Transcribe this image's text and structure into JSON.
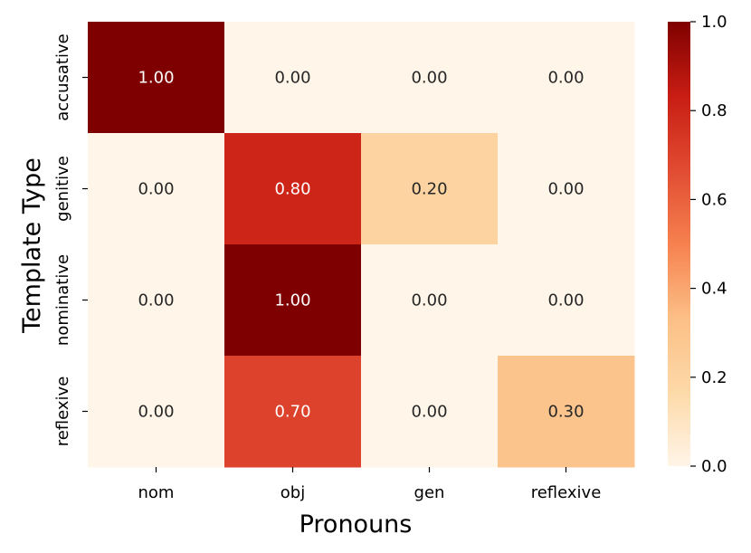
{
  "chart_data": {
    "type": "heatmap",
    "title": "",
    "xlabel": "Pronouns",
    "ylabel": "Template Type",
    "x_categories": [
      "nom",
      "obj",
      "gen",
      "reflexive"
    ],
    "y_categories": [
      "accusative",
      "genitive",
      "nominative",
      "reflexive"
    ],
    "values": [
      [
        1.0,
        0.0,
        0.0,
        0.0
      ],
      [
        0.0,
        0.8,
        0.2,
        0.0
      ],
      [
        0.0,
        1.0,
        0.0,
        0.0
      ],
      [
        0.0,
        0.7,
        0.0,
        0.3
      ]
    ],
    "value_format": "0.00",
    "colormap": "OrRd",
    "colormap_stops": [
      "#fff5e8",
      "#fdd9a8",
      "#fcbf86",
      "#f6814f",
      "#e14b32",
      "#c81d13",
      "#7f0000"
    ],
    "vmin": 0.0,
    "vmax": 1.0,
    "colorbar": {
      "ticks": [
        "0.0",
        "0.2",
        "0.4",
        "0.6",
        "0.8",
        "1.0"
      ]
    },
    "grid": false,
    "legend": "colorbar-right"
  }
}
